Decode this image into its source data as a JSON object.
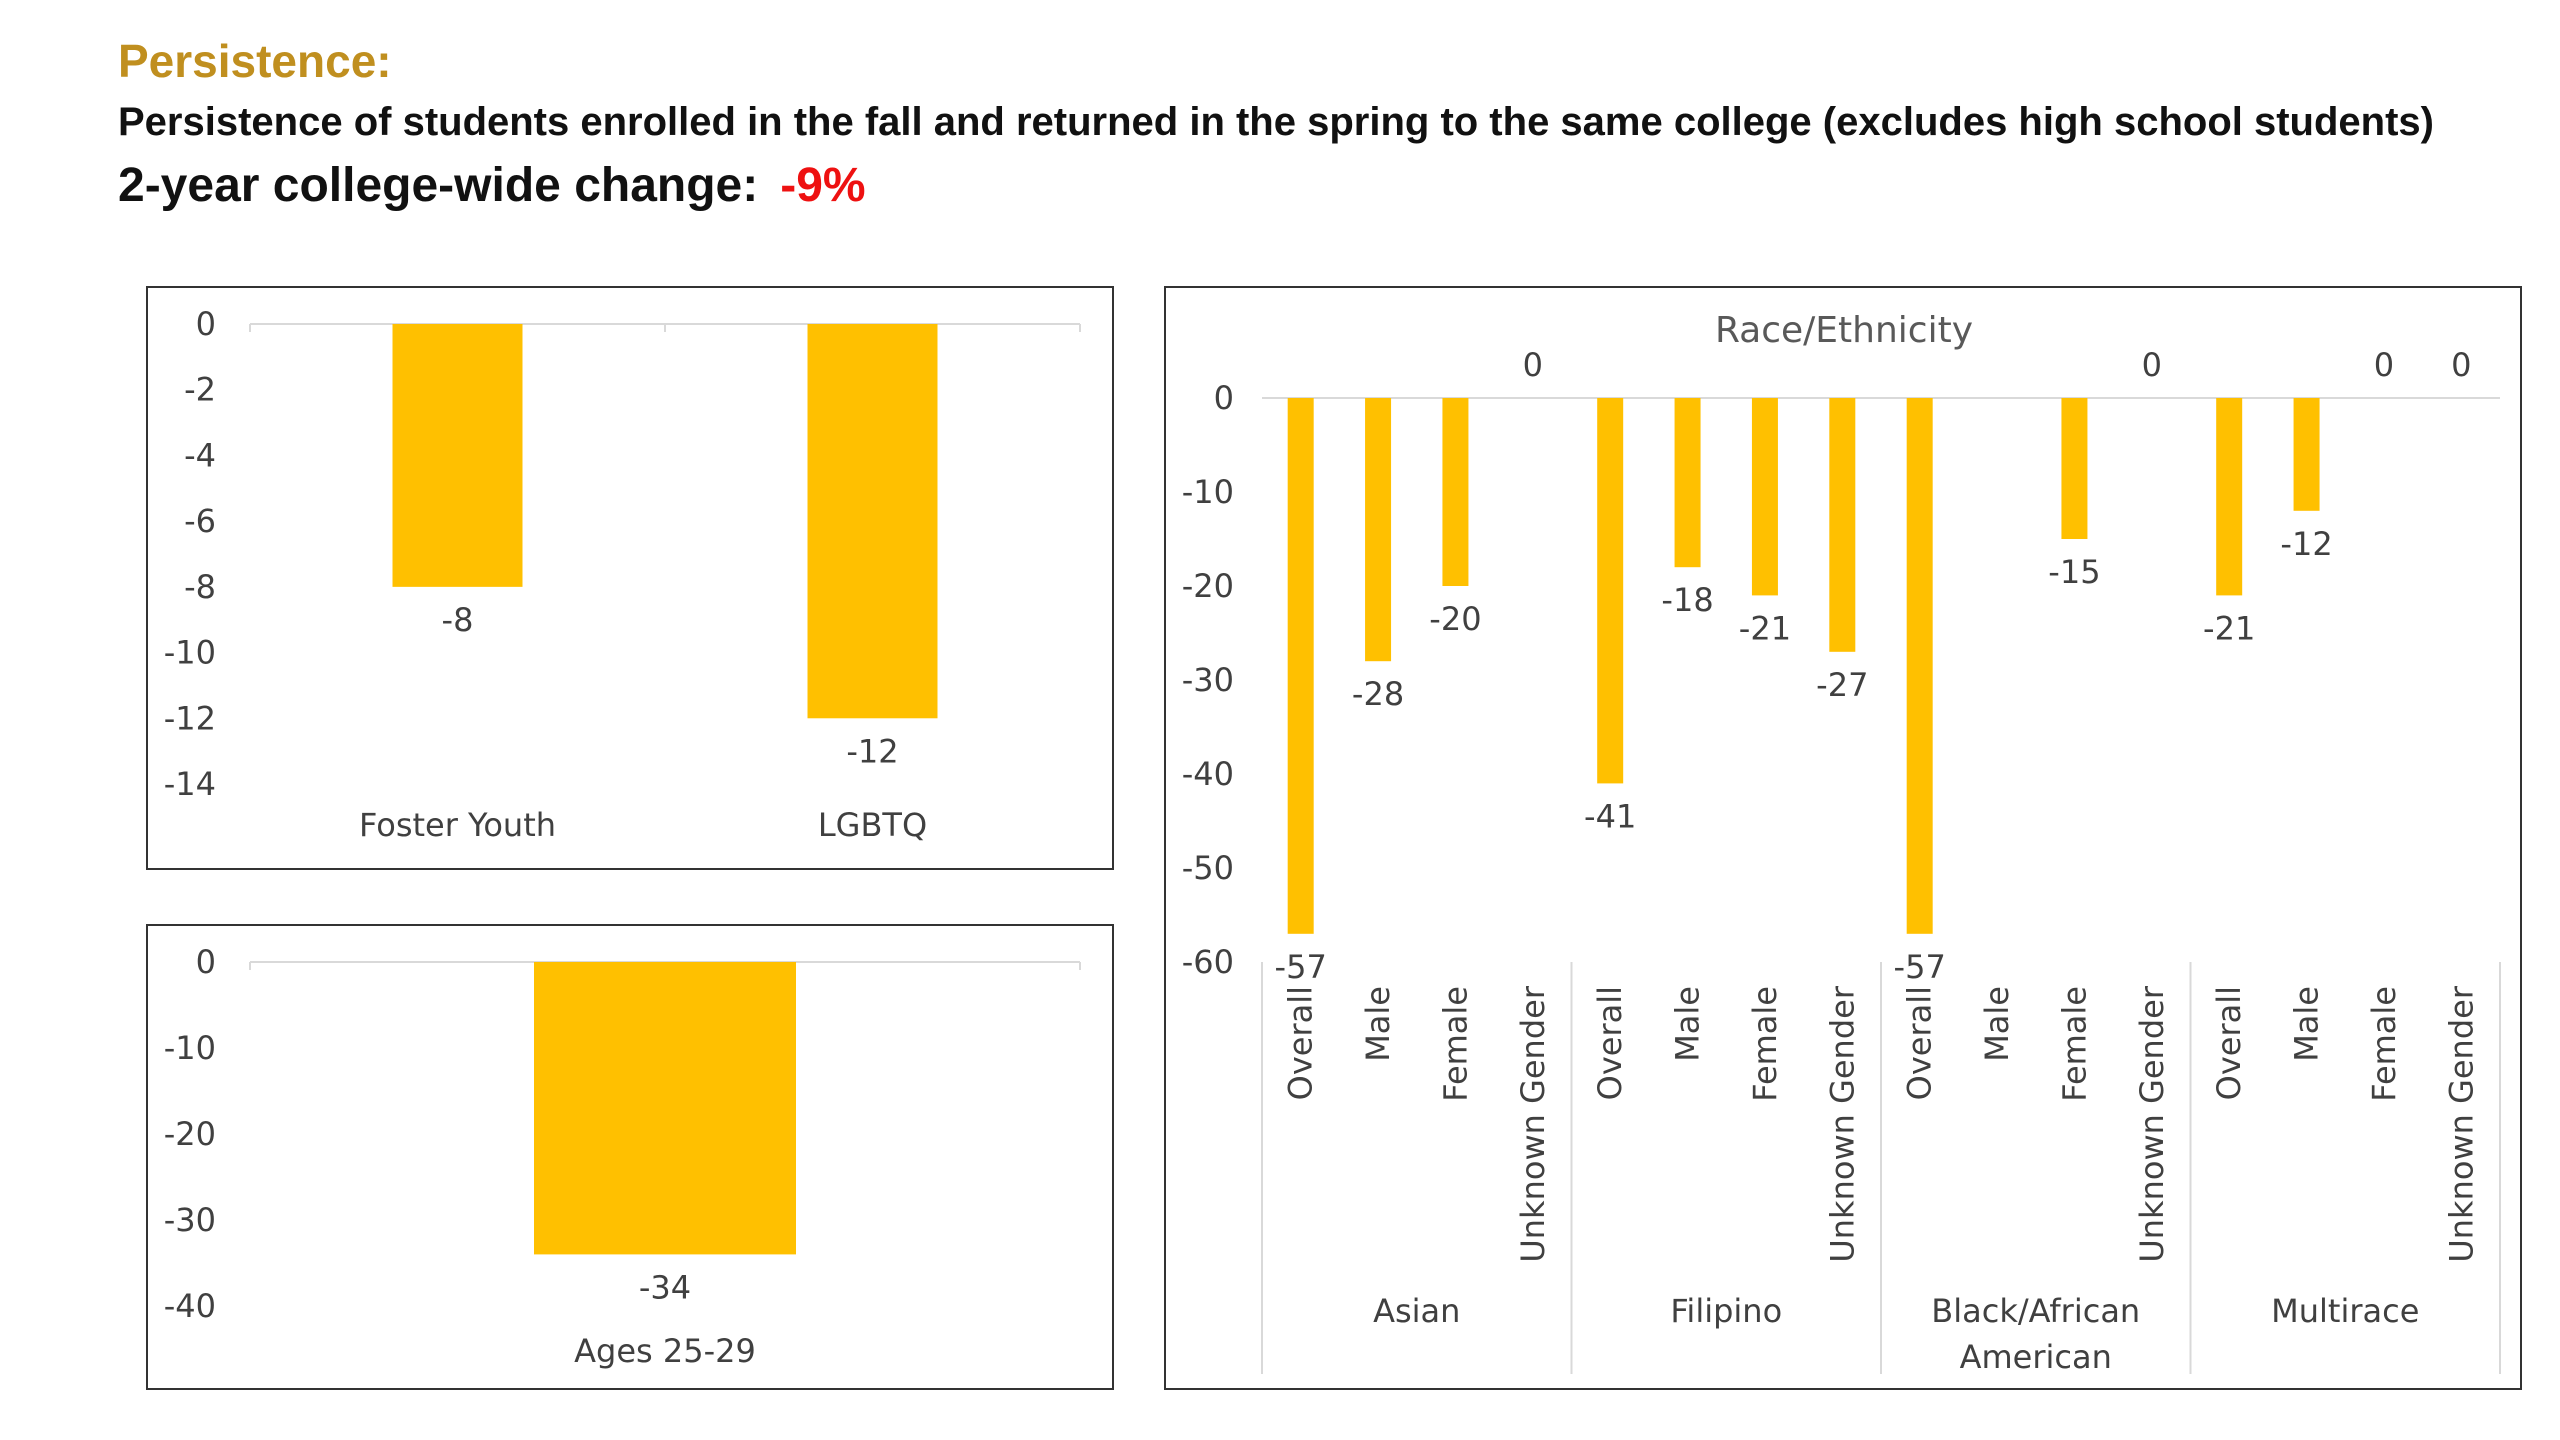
{
  "header": {
    "title": "Persistence:",
    "subtitle": "Persistence of students enrolled in the fall and returned in the spring to the same college (excludes high school students)",
    "change_label": "2-year college-wide change:",
    "change_value": "-9%"
  },
  "colors": {
    "bar": "#FFC000",
    "title": "#C08F1F",
    "negative": "#EE1111",
    "axis": "#D9D9D9"
  },
  "chart_data": [
    {
      "type": "bar",
      "title": "",
      "categories": [
        "Foster Youth",
        "LGBTQ"
      ],
      "values": [
        -8,
        -12
      ],
      "ylim": [
        -14,
        0
      ],
      "yticks": [
        0,
        -2,
        -4,
        -6,
        -8,
        -10,
        -12,
        -14
      ],
      "grid": false,
      "legend": "none"
    },
    {
      "type": "bar",
      "title": "",
      "categories": [
        "Ages 25-29"
      ],
      "values": [
        -34
      ],
      "ylim": [
        -40,
        0
      ],
      "yticks": [
        0,
        -10,
        -20,
        -30,
        -40
      ],
      "grid": false,
      "legend": "none"
    },
    {
      "type": "bar",
      "title": "Race/Ethnicity",
      "groups": [
        {
          "name": "Asian",
          "categories": [
            "Overall",
            "Male",
            "Female",
            "Unknown Gender"
          ],
          "values": [
            -57,
            -28,
            -20,
            0
          ]
        },
        {
          "name": "Filipino",
          "categories": [
            "Overall",
            "Male",
            "Female",
            "Unknown Gender"
          ],
          "values": [
            -41,
            -18,
            -21,
            -27
          ]
        },
        {
          "name": "Black/African American",
          "name_lines": [
            "Black/African",
            "American"
          ],
          "categories": [
            "Overall",
            "Male",
            "Female",
            "Unknown Gender"
          ],
          "values": [
            -57,
            null,
            -15,
            0
          ]
        },
        {
          "name": "Multirace",
          "categories": [
            "Overall",
            "Male",
            "Female",
            "Unknown Gender"
          ],
          "values": [
            -21,
            -12,
            0,
            0
          ]
        }
      ],
      "ylim": [
        -60,
        0
      ],
      "yticks": [
        0,
        -10,
        -20,
        -30,
        -40,
        -50,
        -60
      ],
      "grid": false,
      "legend": "none"
    }
  ]
}
